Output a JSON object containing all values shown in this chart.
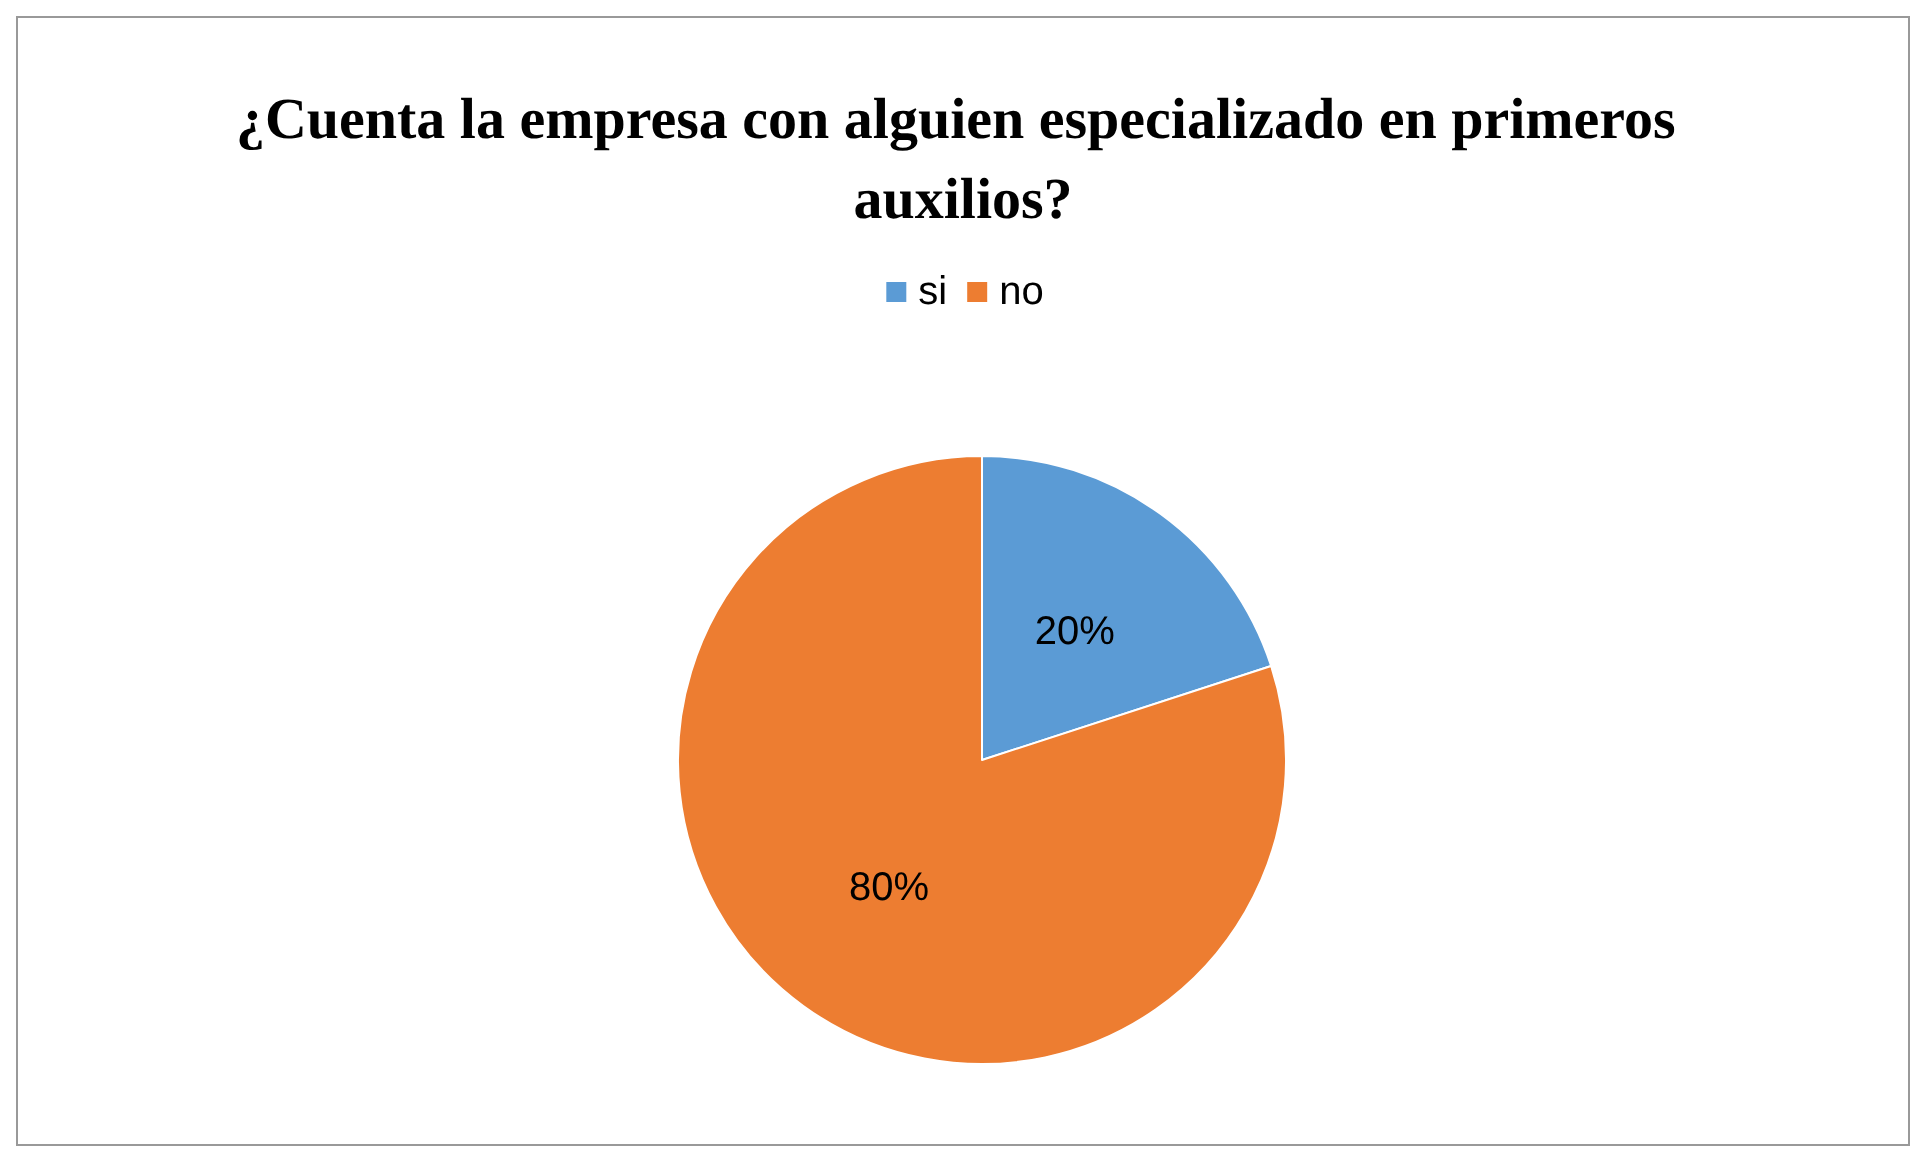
{
  "chart_data": {
    "type": "pie",
    "title": "¿Cuenta la empresa con alguien especializado en primeros auxilios?",
    "categories": [
      "si",
      "no"
    ],
    "values": [
      20,
      80
    ],
    "colors": [
      "#5b9bd5",
      "#ed7d31"
    ],
    "value_labels": [
      "20%",
      "80%"
    ],
    "legend": "top"
  }
}
